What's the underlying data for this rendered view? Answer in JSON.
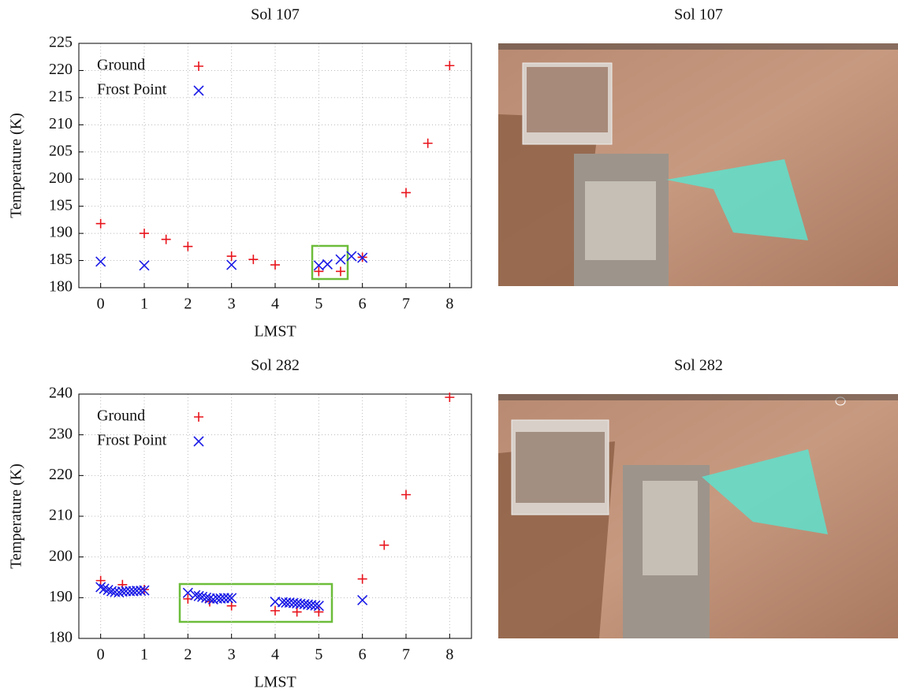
{
  "chart_data": [
    {
      "type": "scatter",
      "title": "Sol 107",
      "x_label": "LMST",
      "y_label": "Temperature (K)",
      "xlim": [
        -0.5,
        8.5
      ],
      "xticks": [
        0,
        1,
        2,
        3,
        4,
        5,
        6,
        7,
        8
      ],
      "ylim": [
        180,
        225
      ],
      "yticks": [
        180,
        185,
        190,
        195,
        200,
        205,
        210,
        215,
        220,
        225
      ],
      "grid": true,
      "legend": "upper-left",
      "series": [
        {
          "name": "Ground",
          "color": "#e8141c",
          "marker": "+",
          "x": [
            0,
            1,
            1.5,
            2,
            3,
            3.5,
            4,
            5,
            5.5,
            6,
            7,
            7.5,
            8
          ],
          "values": [
            191.8,
            190,
            188.9,
            187.6,
            185.8,
            185.2,
            184.2,
            183,
            183,
            185.6,
            197.5,
            206.6,
            220.9
          ]
        },
        {
          "name": "Frost Point",
          "color": "#1a1ae6",
          "marker": "x",
          "x": [
            0,
            1,
            3,
            5,
            5.2,
            5.5,
            5.75,
            6
          ],
          "values": [
            184.8,
            184.1,
            184.2,
            184.1,
            184.3,
            185.2,
            185.8,
            185.5
          ]
        }
      ]
    },
    {
      "type": "scatter",
      "title": "Sol 282",
      "x_label": "LMST",
      "y_label": "Temperature (K)",
      "xlim": [
        -0.5,
        8.5
      ],
      "xticks": [
        0,
        1,
        2,
        3,
        4,
        5,
        6,
        7,
        8
      ],
      "ylim": [
        180,
        240
      ],
      "yticks": [
        180,
        190,
        200,
        210,
        220,
        230,
        240
      ],
      "grid": true,
      "legend": "upper-left",
      "series": [
        {
          "name": "Ground",
          "color": "#e8141c",
          "marker": "+",
          "x": [
            0,
            0.5,
            1,
            2,
            2.5,
            3,
            4,
            4.5,
            5,
            6,
            6.5,
            7,
            8
          ],
          "values": [
            194.2,
            193.2,
            192,
            189.7,
            189,
            188,
            186.8,
            186.5,
            186.5,
            194.6,
            202.9,
            215.3,
            239.2
          ]
        },
        {
          "name": "Frost Point",
          "color": "#1a1ae6",
          "marker": "x",
          "x": [
            0,
            0.08,
            0.17,
            0.25,
            0.33,
            0.42,
            0.5,
            0.58,
            0.67,
            0.75,
            0.83,
            0.92,
            1,
            2,
            2.17,
            2.25,
            2.33,
            2.42,
            2.5,
            2.58,
            2.67,
            2.75,
            2.83,
            2.92,
            3,
            4,
            4.17,
            4.25,
            4.33,
            4.42,
            4.5,
            4.58,
            4.67,
            4.75,
            4.83,
            4.92,
            5,
            6
          ],
          "values": [
            192.6,
            192.2,
            191.9,
            191.6,
            191.4,
            191.3,
            191.5,
            191.6,
            191.6,
            191.6,
            191.7,
            191.7,
            191.8,
            191.2,
            190.6,
            190.4,
            190.2,
            190,
            189.8,
            189.6,
            189.8,
            189.8,
            189.9,
            189.9,
            189.9,
            189,
            188.9,
            188.8,
            188.8,
            188.7,
            188.6,
            188.5,
            188.4,
            188.3,
            188.2,
            188.1,
            188,
            189.4
          ]
        }
      ]
    }
  ],
  "panels": [
    {
      "title": "Sol 107"
    },
    {
      "title": "Sol 282"
    }
  ]
}
